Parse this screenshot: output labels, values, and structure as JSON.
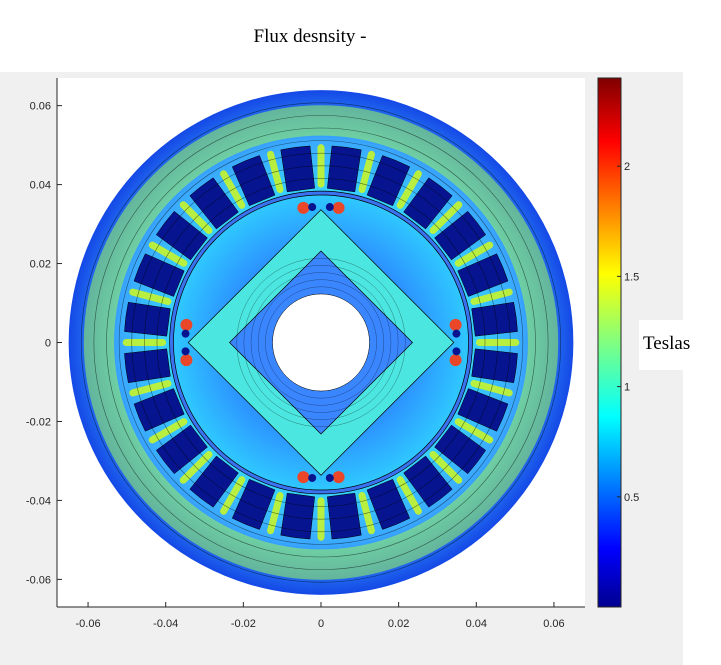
{
  "chart_data": {
    "type": "heatmap",
    "title": "Flux desnsity -",
    "xlabel": "",
    "ylabel": "",
    "xlim": [
      -0.068,
      0.068
    ],
    "ylim": [
      -0.067,
      0.067
    ],
    "x_ticks": [
      "-0.06",
      "-0.04",
      "-0.02",
      "0",
      "0.02",
      "0.04",
      "0.06"
    ],
    "x_tick_values": [
      -0.06,
      -0.04,
      -0.02,
      0,
      0.02,
      0.04,
      0.06
    ],
    "y_ticks": [
      "0.06",
      "0.04",
      "0.02",
      "0",
      "-0.02",
      "-0.04",
      "-0.06"
    ],
    "y_tick_values": [
      0.06,
      0.04,
      0.02,
      0,
      -0.02,
      -0.04,
      -0.06
    ],
    "colorbar": {
      "label": "Teslas",
      "colormap": "jet",
      "range": [
        0,
        2.4
      ],
      "ticks": [
        "0.5",
        "1",
        "1.5",
        "2"
      ],
      "tick_values": [
        0.5,
        1,
        1.5,
        2
      ]
    },
    "geometry": {
      "stator_outer_radius": 0.065,
      "stator_inner_radius": 0.039,
      "rotor_outer_radius": 0.038,
      "shaft_radius": 0.0125,
      "stator_slots": 24,
      "rotor_poles": 4
    },
    "grid": false
  },
  "colors": {
    "figure_background": "#f0f0f0",
    "axes_background": "#ffffff"
  }
}
